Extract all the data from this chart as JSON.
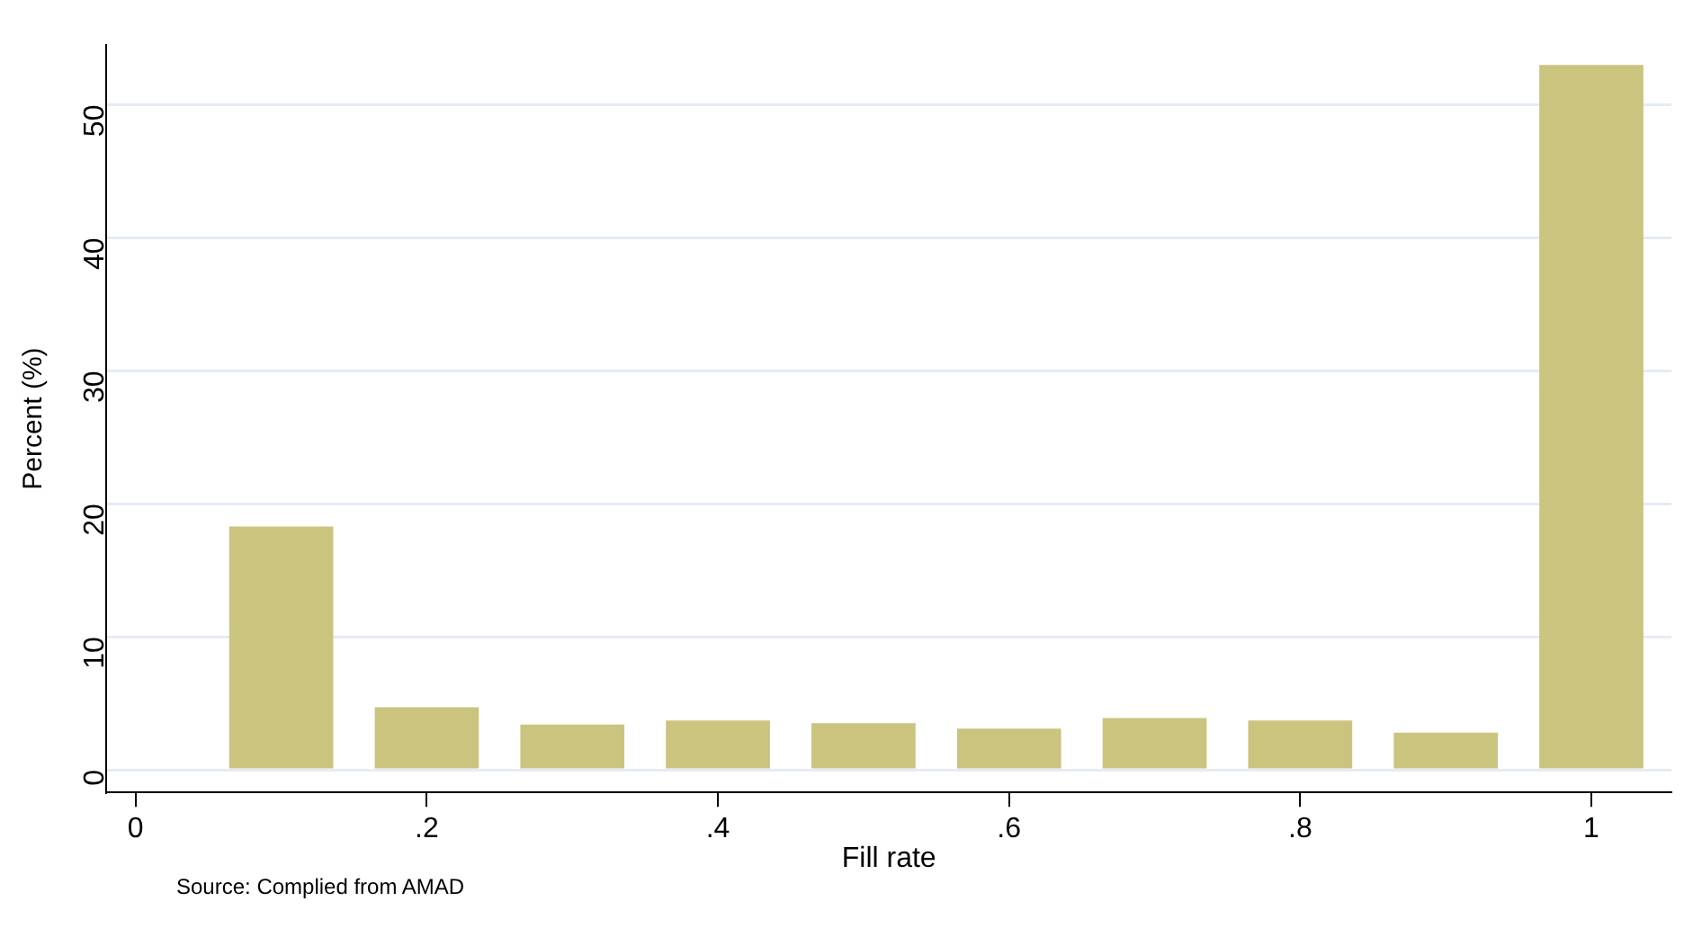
{
  "chart_data": {
    "type": "bar",
    "xlabel": "Fill rate",
    "ylabel": "Percent (%)",
    "annotations": [
      "Source: Complied from AMAD"
    ],
    "x": [
      0.1,
      0.2,
      0.3,
      0.4,
      0.5,
      0.6,
      0.7,
      0.8,
      0.9,
      1.0
    ],
    "values": [
      18.3,
      4.7,
      3.4,
      3.7,
      3.5,
      3.1,
      3.9,
      3.7,
      2.8,
      53.0
    ],
    "color": "#cbc47f",
    "xlim": [
      -0.02,
      1.055
    ],
    "xticks": [
      0,
      {
        "value": 0.2,
        "label": ".2"
      },
      {
        "value": 0.4,
        "label": ".4"
      },
      {
        "value": 0.6,
        "label": ".6"
      },
      {
        "value": 0.8,
        "label": ".8"
      },
      1
    ],
    "ylim": [
      -1.7,
      54.5
    ],
    "yticks": [
      0,
      10,
      20,
      30,
      40,
      50
    ],
    "grid": "y",
    "legend": false
  }
}
